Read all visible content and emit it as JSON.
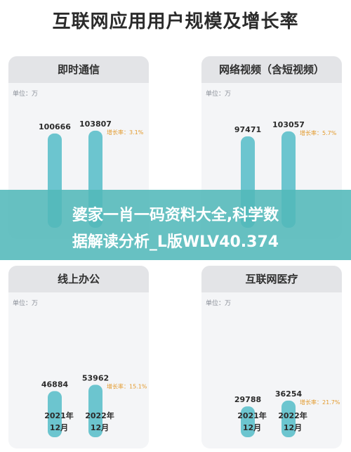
{
  "title": "互联网应用用户规模及增长率",
  "banner": {
    "line1": "婆家一肖一码资料大全,科学数",
    "line2": "据解读分析_L版WLV40.374"
  },
  "unit_label": "单位：万",
  "colors": {
    "bar": "#6cc5cf",
    "growth": "#e39a2c",
    "panel": "#f4f5f7"
  },
  "chart_data": [
    {
      "type": "bar",
      "title": "即时通信",
      "ylabel": "单位：万",
      "categories": [
        "2021年12月",
        "2022年12月"
      ],
      "values": [
        100666,
        103807
      ],
      "value_labels": [
        "100666",
        "103807"
      ],
      "growth_label": "增长率：3.1%",
      "ylim": [
        0,
        110000
      ]
    },
    {
      "type": "bar",
      "title": "网络视频（含短视频）",
      "ylabel": "单位：万",
      "categories": [
        "2021年12月",
        "2022年12月"
      ],
      "values": [
        97471,
        103057
      ],
      "value_labels": [
        "97471",
        "103057"
      ],
      "growth_label": "增长率：5.7%",
      "ylim": [
        0,
        110000
      ]
    },
    {
      "type": "bar",
      "title": "线上办公",
      "ylabel": "单位：万",
      "categories": [
        "2021年12月",
        "2022年12月"
      ],
      "values": [
        46884,
        53962
      ],
      "value_labels": [
        "46884",
        "53962"
      ],
      "growth_label": "增长率：15.1%",
      "ylim": [
        0,
        110000
      ]
    },
    {
      "type": "bar",
      "title": "互联网医疗",
      "ylabel": "单位：万",
      "categories": [
        "2021年12月",
        "2022年12月"
      ],
      "values": [
        29788,
        36254
      ],
      "value_labels": [
        "29788",
        "36254"
      ],
      "growth_label": "增长率：21.7%",
      "ylim": [
        0,
        110000
      ]
    }
  ],
  "x_axis": {
    "left_line1": "2021年",
    "left_line2": "12月",
    "right_line1": "2022年",
    "right_line2": "12月"
  }
}
